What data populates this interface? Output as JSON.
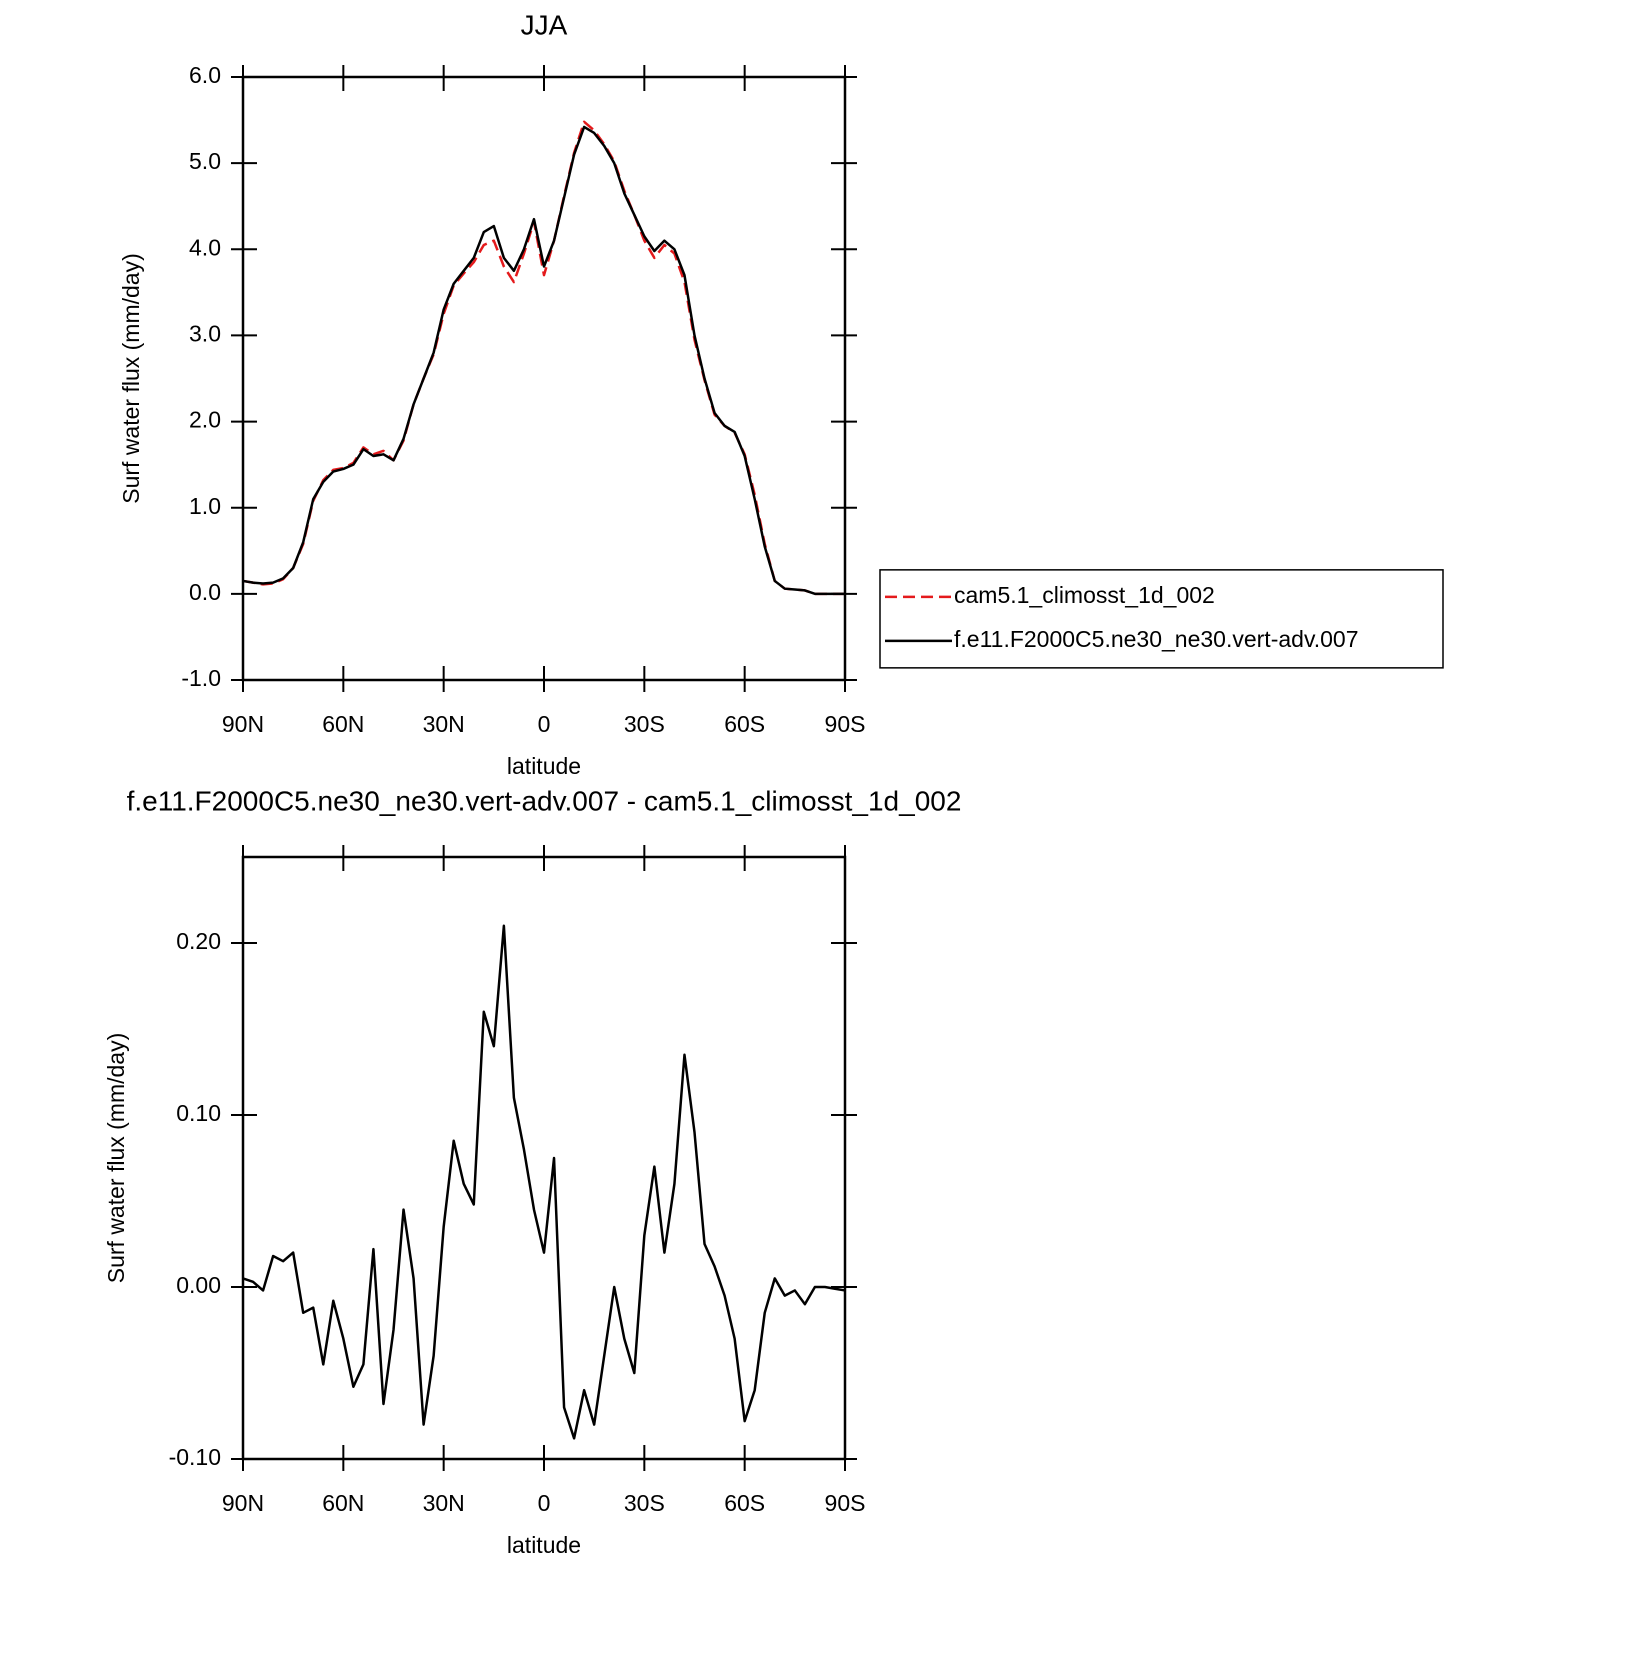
{
  "chart_data": [
    {
      "type": "line",
      "title": "JJA",
      "xlabel": "latitude",
      "ylabel": "Surf water flux (mm/day)",
      "x": [
        90,
        87,
        84,
        81,
        78,
        75,
        72,
        69,
        66,
        63,
        60,
        57,
        54,
        51,
        48,
        45,
        42,
        39,
        36,
        33,
        30,
        27,
        24,
        21,
        18,
        15,
        12,
        9,
        6,
        3,
        0,
        -3,
        -6,
        -9,
        -12,
        -15,
        -18,
        -21,
        -24,
        -27,
        -30,
        -33,
        -36,
        -39,
        -42,
        -45,
        -48,
        -51,
        -54,
        -57,
        -60,
        -63,
        -66,
        -69,
        -72,
        -75,
        -78,
        -81,
        -84,
        -87,
        -90
      ],
      "series": [
        {
          "name": "cam5.1_climosst_1d_002",
          "color": "#e41a1c",
          "dash": true,
          "values": [
            0.15,
            0.13,
            0.11,
            0.12,
            0.17,
            0.3,
            0.58,
            1.08,
            1.32,
            1.44,
            1.46,
            1.52,
            1.7,
            1.62,
            1.66,
            1.55,
            1.78,
            2.2,
            2.5,
            2.78,
            3.25,
            3.58,
            3.72,
            3.85,
            4.05,
            4.1,
            3.8,
            3.62,
            3.95,
            4.32,
            3.7,
            4.1,
            4.62,
            5.12,
            5.48,
            5.38,
            5.22,
            5.02,
            4.68,
            4.4,
            4.1,
            3.9,
            4.05,
            3.95,
            3.62,
            2.95,
            2.48,
            2.08,
            1.95,
            1.87,
            1.62,
            1.15,
            0.58,
            0.15,
            0.06,
            0.05,
            0.04,
            0.0,
            0.0,
            0.0,
            0.0
          ]
        },
        {
          "name": "f.e11.F2000C5.ne30_ne30.vert-adv.007",
          "color": "#000000",
          "dash": false,
          "values": [
            0.15,
            0.13,
            0.12,
            0.13,
            0.18,
            0.3,
            0.6,
            1.1,
            1.3,
            1.42,
            1.45,
            1.5,
            1.68,
            1.6,
            1.62,
            1.55,
            1.8,
            2.2,
            2.5,
            2.8,
            3.3,
            3.6,
            3.75,
            3.9,
            4.2,
            4.27,
            3.9,
            3.75,
            4.0,
            4.35,
            3.8,
            4.1,
            4.6,
            5.1,
            5.42,
            5.35,
            5.2,
            5.0,
            4.65,
            4.4,
            4.15,
            3.98,
            4.1,
            4.0,
            3.7,
            3.0,
            2.5,
            2.1,
            1.95,
            1.88,
            1.6,
            1.1,
            0.55,
            0.15,
            0.06,
            0.05,
            0.04,
            0.0,
            0.0,
            0.0,
            0.0
          ]
        }
      ],
      "xlim": [
        90,
        -90
      ],
      "xticks": [
        {
          "value": 90,
          "label": "90N"
        },
        {
          "value": 60,
          "label": "60N"
        },
        {
          "value": 30,
          "label": "30N"
        },
        0,
        {
          "value": -30,
          "label": "30S"
        },
        {
          "value": -60,
          "label": "60S"
        },
        {
          "value": -90,
          "label": "90S"
        }
      ],
      "ylim": [
        -1,
        6
      ],
      "yticks": [
        {
          "value": -1,
          "label": "-1.0"
        },
        {
          "value": 0,
          "label": "0.0"
        },
        {
          "value": 1,
          "label": "1.0"
        },
        {
          "value": 2,
          "label": "2.0"
        },
        {
          "value": 3,
          "label": "3.0"
        },
        {
          "value": 4,
          "label": "4.0"
        },
        {
          "value": 5,
          "label": "5.0"
        },
        {
          "value": 6,
          "label": "6.0"
        }
      ],
      "legend": "right"
    },
    {
      "type": "line",
      "title": "f.e11.F2000C5.ne30_ne30.vert-adv.007 - cam5.1_climosst_1d_002",
      "xlabel": "latitude",
      "ylabel": "Surf water flux (mm/day)",
      "x": [
        90,
        87,
        84,
        81,
        78,
        75,
        72,
        69,
        66,
        63,
        60,
        57,
        54,
        51,
        48,
        45,
        42,
        39,
        36,
        33,
        30,
        27,
        24,
        21,
        18,
        15,
        12,
        9,
        6,
        3,
        0,
        -3,
        -6,
        -9,
        -12,
        -15,
        -18,
        -21,
        -24,
        -27,
        -30,
        -33,
        -36,
        -39,
        -42,
        -45,
        -48,
        -51,
        -54,
        -57,
        -60,
        -63,
        -66,
        -69,
        -72,
        -75,
        -78,
        -81,
        -84,
        -87,
        -90
      ],
      "series": [
        {
          "color": "#000000",
          "values": [
            0.005,
            0.003,
            -0.002,
            0.018,
            0.015,
            0.02,
            -0.015,
            -0.012,
            -0.045,
            -0.008,
            -0.03,
            -0.058,
            -0.045,
            0.022,
            -0.068,
            -0.025,
            0.045,
            0.005,
            -0.08,
            -0.04,
            0.035,
            0.085,
            0.06,
            0.048,
            0.16,
            0.14,
            0.21,
            0.11,
            0.08,
            0.045,
            0.02,
            0.075,
            -0.07,
            -0.088,
            -0.06,
            -0.08,
            -0.04,
            0.0,
            -0.03,
            -0.05,
            0.03,
            0.07,
            0.02,
            0.06,
            0.135,
            0.09,
            0.025,
            0.012,
            -0.005,
            -0.03,
            -0.078,
            -0.06,
            -0.015,
            0.005,
            -0.005,
            -0.002,
            -0.01,
            0.0,
            0.0,
            -0.001,
            -0.002
          ]
        }
      ],
      "xlim": [
        90,
        -90
      ],
      "xticks": [
        {
          "value": 90,
          "label": "90N"
        },
        {
          "value": 60,
          "label": "60N"
        },
        {
          "value": 30,
          "label": "30N"
        },
        0,
        {
          "value": -30,
          "label": "30S"
        },
        {
          "value": -60,
          "label": "60S"
        },
        {
          "value": -90,
          "label": "90S"
        }
      ],
      "ylim": [
        -0.1,
        0.25
      ],
      "yticks": [
        {
          "value": -0.1,
          "label": "-0.10"
        },
        {
          "value": 0,
          "label": "0.00"
        },
        {
          "value": 0.1,
          "label": "0.10"
        },
        {
          "value": 0.2,
          "label": "0.20"
        }
      ]
    }
  ]
}
